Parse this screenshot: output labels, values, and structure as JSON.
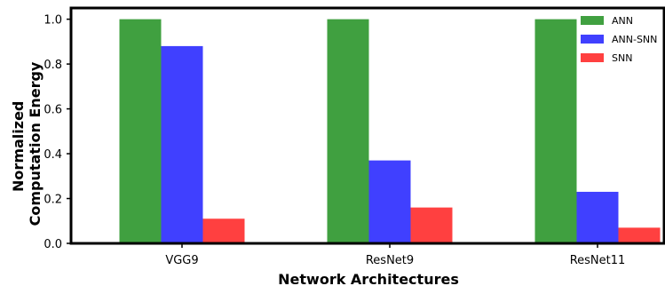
{
  "chart_data": {
    "type": "bar",
    "categories": [
      "VGG9",
      "ResNet9",
      "ResNet11"
    ],
    "series": [
      {
        "name": "ANN",
        "values": [
          1.0,
          1.0,
          1.0
        ],
        "color": "#40a040"
      },
      {
        "name": "ANN-SNN",
        "values": [
          0.88,
          0.37,
          0.23
        ],
        "color": "#4040ff"
      },
      {
        "name": "SNN",
        "values": [
          0.11,
          0.16,
          0.07
        ],
        "color": "#ff4040"
      }
    ],
    "title": "",
    "xlabel": "Network Architectures",
    "ylabel_lines": [
      "Normalized",
      "Computation Energy"
    ],
    "ylim": [
      0,
      1.05
    ],
    "yticks": [
      0.0,
      0.2,
      0.4,
      0.6,
      0.8,
      1.0
    ],
    "ytick_labels": [
      "0.0",
      "0.2",
      "0.4",
      "0.6",
      "0.8",
      "1.0"
    ],
    "grid": false,
    "legend_position": "top-right"
  }
}
